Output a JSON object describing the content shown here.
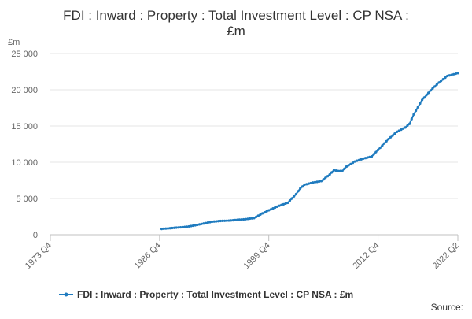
{
  "chart_data": {
    "type": "line",
    "title_line1": "FDI : Inward : Property : Total Investment Level : CP NSA :",
    "title_line2": "£m",
    "ylabel": "£m",
    "source_label": "Source:",
    "ylim": [
      0,
      25000
    ],
    "y_ticks": [
      0,
      5000,
      10000,
      15000,
      20000,
      25000
    ],
    "y_tick_labels": [
      "0",
      "5 000",
      "10 000",
      "15 000",
      "20 000",
      "25 000"
    ],
    "x_tick_labels": [
      "1973 Q4",
      "1986 Q4",
      "1999 Q4",
      "2012 Q4",
      "2022 Q2"
    ],
    "x_tick_years": [
      1973.75,
      1986.75,
      1999.75,
      2012.75,
      2022.25
    ],
    "xlim": [
      1973.75,
      2022.25
    ],
    "grid": "horizontal",
    "legend_position": "bottom",
    "series": [
      {
        "name": "FDI : Inward : Property : Total Investment Level : CP NSA : £m",
        "color": "#1f7bbf",
        "points": [
          [
            "1987 Q1",
            800
          ],
          [
            "1988 Q1",
            900
          ],
          [
            "1989 Q1",
            1000
          ],
          [
            "1990 Q1",
            1100
          ],
          [
            "1991 Q1",
            1300
          ],
          [
            "1992 Q1",
            1550
          ],
          [
            "1993 Q1",
            1800
          ],
          [
            "1994 Q1",
            1900
          ],
          [
            "1995 Q1",
            1950
          ],
          [
            "1996 Q1",
            2050
          ],
          [
            "1997 Q1",
            2150
          ],
          [
            "1998 Q1",
            2300
          ],
          [
            "1999 Q1",
            2950
          ],
          [
            "2000 Q1",
            3500
          ],
          [
            "2001 Q1",
            4000
          ],
          [
            "2002 Q1",
            4400
          ],
          [
            "2003 Q1",
            5600
          ],
          [
            "2003 Q3",
            6400
          ],
          [
            "2004 Q1",
            6900
          ],
          [
            "2005 Q1",
            7200
          ],
          [
            "2006 Q1",
            7400
          ],
          [
            "2007 Q1",
            8300
          ],
          [
            "2007 Q3",
            8900
          ],
          [
            "2008 Q1",
            8800
          ],
          [
            "2008 Q3",
            8800
          ],
          [
            "2009 Q1",
            9400
          ],
          [
            "2010 Q1",
            10100
          ],
          [
            "2011 Q1",
            10500
          ],
          [
            "2012 Q1",
            10800
          ],
          [
            "2013 Q1",
            12000
          ],
          [
            "2014 Q1",
            13200
          ],
          [
            "2015 Q1",
            14200
          ],
          [
            "2016 Q1",
            14800
          ],
          [
            "2016 Q3",
            15300
          ],
          [
            "2017 Q1",
            16600
          ],
          [
            "2018 Q1",
            18600
          ],
          [
            "2019 Q1",
            19900
          ],
          [
            "2020 Q1",
            21000
          ],
          [
            "2021 Q1",
            21900
          ],
          [
            "2022 Q2",
            22300
          ]
        ]
      }
    ]
  }
}
